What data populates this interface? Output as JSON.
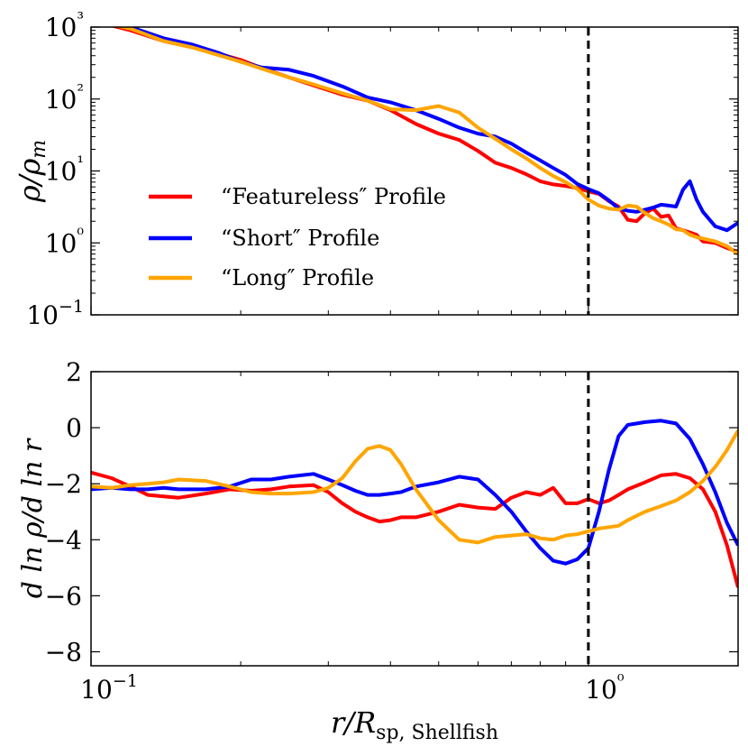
{
  "chart_data": [
    {
      "type": "line",
      "id": "density",
      "title": "",
      "ylabel": "ρ/ρm",
      "xlabel": "",
      "xscale": "log",
      "yscale": "log",
      "xlim": [
        0.1,
        2.0
      ],
      "ylim": [
        0.1,
        1000
      ],
      "ytick_labels": [
        "10−1",
        "10⁰",
        "10¹",
        "10²",
        "10³"
      ],
      "vline_x": 1.0,
      "legend_position": "lower-left",
      "series": [
        {
          "name": "“Featureless″ Profile",
          "color": "#ff0000",
          "x": [
            0.1,
            0.12,
            0.14,
            0.16,
            0.18,
            0.2,
            0.22,
            0.25,
            0.28,
            0.32,
            0.36,
            0.4,
            0.45,
            0.5,
            0.55,
            0.6,
            0.65,
            0.7,
            0.75,
            0.8,
            0.85,
            0.9,
            0.95,
            1.0,
            1.05,
            1.1,
            1.15,
            1.2,
            1.25,
            1.3,
            1.35,
            1.4,
            1.45,
            1.5,
            1.55,
            1.6,
            1.65,
            1.7,
            1.8,
            1.9,
            2.0
          ],
          "y": [
            1250,
            900,
            640,
            520,
            430,
            350,
            270,
            200,
            155,
            115,
            95,
            70,
            45,
            33,
            27,
            19,
            13,
            11,
            9.0,
            7.2,
            6.5,
            6.2,
            5.8,
            5.2,
            4.8,
            3.8,
            3.2,
            2.1,
            2.0,
            2.6,
            3.0,
            2.3,
            2.4,
            1.6,
            1.5,
            1.4,
            1.3,
            1.05,
            1.0,
            0.85,
            0.75
          ]
        },
        {
          "name": "“Short″ Profile",
          "color": "#0000ff",
          "x": [
            0.1,
            0.12,
            0.14,
            0.16,
            0.18,
            0.2,
            0.22,
            0.25,
            0.28,
            0.32,
            0.36,
            0.4,
            0.45,
            0.5,
            0.55,
            0.6,
            0.65,
            0.7,
            0.75,
            0.8,
            0.85,
            0.9,
            0.95,
            1.0,
            1.05,
            1.1,
            1.15,
            1.2,
            1.25,
            1.3,
            1.35,
            1.4,
            1.45,
            1.5,
            1.55,
            1.6,
            1.65,
            1.7,
            1.8,
            1.9,
            2.0
          ],
          "y": [
            1400,
            1000,
            700,
            570,
            440,
            330,
            275,
            255,
            210,
            150,
            105,
            90,
            70,
            53,
            40,
            33,
            30,
            24,
            18,
            14,
            11,
            8.8,
            6.6,
            5.6,
            4.9,
            3.9,
            3.0,
            2.8,
            2.7,
            2.9,
            3.1,
            3.4,
            3.3,
            3.2,
            5.5,
            7.2,
            4.0,
            2.7,
            1.7,
            1.5,
            1.9
          ]
        },
        {
          "name": "“Long″ Profile",
          "color": "#ffa500",
          "x": [
            0.1,
            0.12,
            0.14,
            0.16,
            0.18,
            0.2,
            0.22,
            0.25,
            0.28,
            0.32,
            0.36,
            0.4,
            0.45,
            0.5,
            0.55,
            0.6,
            0.65,
            0.7,
            0.75,
            0.8,
            0.85,
            0.9,
            0.95,
            1.0,
            1.05,
            1.1,
            1.15,
            1.2,
            1.25,
            1.3,
            1.35,
            1.4,
            1.45,
            1.5,
            1.55,
            1.6,
            1.65,
            1.7,
            1.8,
            1.9,
            2.0
          ],
          "y": [
            1250,
            950,
            640,
            520,
            410,
            330,
            265,
            200,
            160,
            120,
            95,
            72,
            70,
            80,
            65,
            40,
            28,
            20,
            15,
            11,
            8.5,
            7.0,
            5.6,
            4.0,
            3.3,
            3.0,
            2.9,
            3.3,
            3.2,
            2.6,
            2.2,
            2.0,
            1.8,
            1.55,
            1.5,
            1.3,
            1.2,
            1.15,
            1.05,
            0.9,
            0.7
          ]
        }
      ]
    },
    {
      "type": "line",
      "id": "slope",
      "title": "",
      "ylabel": "d ln ρ/d ln r",
      "xlabel": "r/R",
      "xlabel_subscript": "sp, Shellfish",
      "xscale": "log",
      "xlim": [
        0.1,
        2.0
      ],
      "ylim": [
        -8.5,
        2
      ],
      "yticks": [
        -8,
        -6,
        -4,
        -2,
        0,
        2
      ],
      "ytick_labels": [
        "−8",
        "−6",
        "−4",
        "−2",
        "0",
        "2"
      ],
      "xtick_labels": [
        "10−1",
        "10⁰"
      ],
      "vline_x": 1.0,
      "series": [
        {
          "name": "“Featureless″ Profile",
          "color": "#ff0000",
          "x": [
            0.1,
            0.11,
            0.12,
            0.13,
            0.14,
            0.15,
            0.17,
            0.19,
            0.21,
            0.23,
            0.25,
            0.28,
            0.3,
            0.32,
            0.34,
            0.36,
            0.38,
            0.4,
            0.42,
            0.45,
            0.5,
            0.55,
            0.6,
            0.65,
            0.7,
            0.75,
            0.8,
            0.85,
            0.9,
            0.95,
            1.0,
            1.05,
            1.1,
            1.15,
            1.2,
            1.3,
            1.4,
            1.5,
            1.6,
            1.7,
            1.8,
            1.9,
            2.0
          ],
          "y": [
            -1.6,
            -1.8,
            -2.1,
            -2.4,
            -2.45,
            -2.5,
            -2.35,
            -2.2,
            -2.25,
            -2.2,
            -2.1,
            -2.05,
            -2.3,
            -2.7,
            -3.0,
            -3.2,
            -3.35,
            -3.3,
            -3.2,
            -3.2,
            -3.0,
            -2.75,
            -2.85,
            -2.9,
            -2.5,
            -2.3,
            -2.4,
            -2.15,
            -2.7,
            -2.7,
            -2.55,
            -2.7,
            -2.6,
            -2.4,
            -2.2,
            -1.95,
            -1.7,
            -1.65,
            -1.8,
            -2.2,
            -3.0,
            -4.2,
            -5.7
          ]
        },
        {
          "name": "“Short″ Profile",
          "color": "#0000ff",
          "x": [
            0.1,
            0.11,
            0.12,
            0.13,
            0.14,
            0.15,
            0.17,
            0.19,
            0.21,
            0.23,
            0.25,
            0.28,
            0.3,
            0.32,
            0.34,
            0.36,
            0.38,
            0.4,
            0.42,
            0.45,
            0.5,
            0.55,
            0.6,
            0.65,
            0.7,
            0.75,
            0.8,
            0.85,
            0.9,
            0.95,
            1.0,
            1.05,
            1.1,
            1.15,
            1.2,
            1.3,
            1.4,
            1.5,
            1.6,
            1.7,
            1.8,
            1.9,
            2.0
          ],
          "y": [
            -2.2,
            -2.15,
            -2.2,
            -2.2,
            -2.15,
            -2.2,
            -2.2,
            -2.1,
            -1.85,
            -1.85,
            -1.75,
            -1.65,
            -1.85,
            -2.05,
            -2.25,
            -2.4,
            -2.4,
            -2.35,
            -2.3,
            -2.1,
            -1.95,
            -1.75,
            -1.85,
            -2.4,
            -3.0,
            -3.7,
            -4.3,
            -4.75,
            -4.85,
            -4.7,
            -4.3,
            -3.0,
            -1.5,
            -0.3,
            0.1,
            0.2,
            0.25,
            0.15,
            -0.4,
            -1.3,
            -2.3,
            -3.4,
            -4.2
          ]
        },
        {
          "name": "“Long″ Profile",
          "color": "#ffa500",
          "x": [
            0.1,
            0.11,
            0.12,
            0.13,
            0.14,
            0.15,
            0.17,
            0.19,
            0.21,
            0.23,
            0.25,
            0.28,
            0.3,
            0.32,
            0.34,
            0.36,
            0.38,
            0.4,
            0.42,
            0.45,
            0.5,
            0.55,
            0.6,
            0.65,
            0.7,
            0.75,
            0.8,
            0.85,
            0.9,
            0.95,
            1.0,
            1.05,
            1.1,
            1.15,
            1.2,
            1.3,
            1.4,
            1.5,
            1.6,
            1.7,
            1.8,
            1.9,
            2.0
          ],
          "y": [
            -2.1,
            -2.15,
            -2.05,
            -2.0,
            -1.95,
            -1.85,
            -1.9,
            -2.1,
            -2.3,
            -2.35,
            -2.35,
            -2.3,
            -2.15,
            -1.8,
            -1.2,
            -0.75,
            -0.65,
            -0.8,
            -1.3,
            -2.2,
            -3.3,
            -4.0,
            -4.1,
            -3.9,
            -3.85,
            -3.8,
            -3.95,
            -4.0,
            -3.85,
            -3.8,
            -3.7,
            -3.6,
            -3.55,
            -3.5,
            -3.3,
            -3.0,
            -2.8,
            -2.6,
            -2.3,
            -1.9,
            -1.4,
            -0.8,
            -0.1
          ]
        }
      ]
    }
  ]
}
